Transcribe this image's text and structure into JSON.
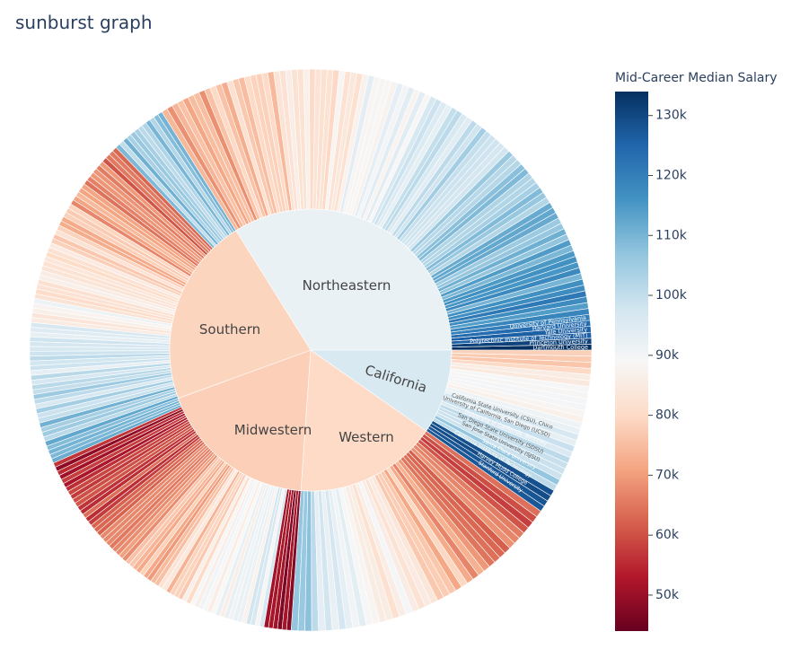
{
  "chart_data": {
    "type": "sunburst",
    "title": "sunburst graph",
    "colorbar": {
      "title": "Mid-Career Median Salary",
      "range": [
        44000,
        134000
      ],
      "ticks": [
        {
          "value": 130000,
          "label": "130k"
        },
        {
          "value": 120000,
          "label": "120k"
        },
        {
          "value": 110000,
          "label": "110k"
        },
        {
          "value": 100000,
          "label": "100k"
        },
        {
          "value": 90000,
          "label": "90k"
        },
        {
          "value": 80000,
          "label": "80k"
        },
        {
          "value": 70000,
          "label": "70k"
        },
        {
          "value": 60000,
          "label": "60k"
        },
        {
          "value": 50000,
          "label": "50k"
        }
      ],
      "colorscale": [
        "#67001f",
        "#b2182b",
        "#d6604d",
        "#f4a582",
        "#fddbc7",
        "#f7f7f7",
        "#d1e5f0",
        "#92c5de",
        "#4393c3",
        "#2166ac",
        "#053061"
      ]
    },
    "regions": [
      {
        "name": "Northeastern",
        "count": 100,
        "value": 92000
      },
      {
        "name": "California",
        "count": 28,
        "value": 96000
      },
      {
        "name": "Western",
        "count": 42,
        "value": 80000
      },
      {
        "name": "Midwestern",
        "count": 71,
        "value": 78000
      },
      {
        "name": "Southern",
        "count": 79,
        "value": 79000
      }
    ],
    "leaves": [
      {
        "region": "Northeastern",
        "name": "Dartmouth College",
        "value": 134000
      },
      {
        "region": "Northeastern",
        "name": "Princeton University",
        "value": 131000
      },
      {
        "region": "Northeastern",
        "name": "Polytechnic Institute of Technology (MIT)",
        "value": 126000
      },
      {
        "region": "Northeastern",
        "name": "Yale University",
        "value": 126000
      },
      {
        "region": "Northeastern",
        "name": "Harvard University",
        "value": 124000
      },
      {
        "region": "Northeastern",
        "name": "University of Pennsylvania",
        "value": 120000
      },
      {
        "region": "California",
        "name": "Stanford University",
        "value": 129000
      },
      {
        "region": "California",
        "name": "Harvey Mudd College",
        "value": 126000
      },
      {
        "region": "California",
        "name": "California Institute of Technology",
        "value": 126000
      },
      {
        "region": "California",
        "name": "Santa Clara University",
        "value": 115000
      },
      {
        "region": "California",
        "name": "San Jose State University (SJSU)",
        "value": 100000
      },
      {
        "region": "California",
        "name": "San Diego State University (SDSU)",
        "value": 92000
      },
      {
        "region": "California",
        "name": "University of California, Berkeley",
        "value": 112000
      },
      {
        "region": "California",
        "name": "University of California, San Diego (UCSD)",
        "value": 97000
      },
      {
        "region": "California",
        "name": "California State University (CSU), Chico",
        "value": 88000
      }
    ]
  }
}
